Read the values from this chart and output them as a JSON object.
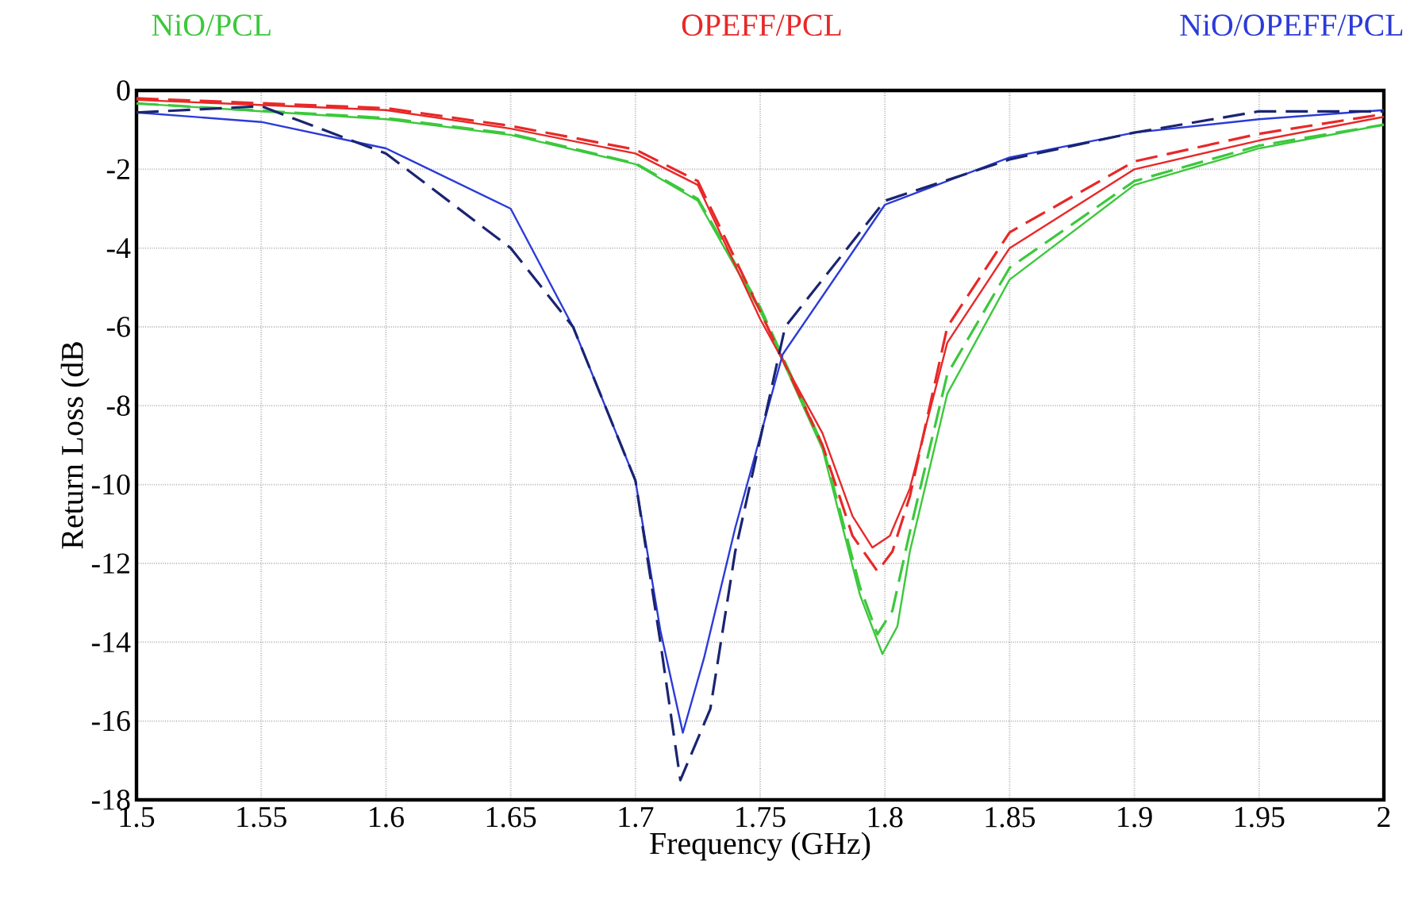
{
  "chart_data": {
    "type": "line",
    "xlabel": "Frequency (GHz)",
    "ylabel": "Return Loss (dB",
    "xlim": [
      1.5,
      2
    ],
    "ylim": [
      -18,
      0
    ],
    "xticks": [
      1.5,
      1.55,
      1.6,
      1.65,
      1.7,
      1.75,
      1.8,
      1.85,
      1.9,
      1.95,
      2
    ],
    "yticks": [
      0,
      -2,
      -4,
      -6,
      -8,
      -10,
      -12,
      -14,
      -16,
      -18
    ],
    "grid": true,
    "series": [
      {
        "name": "NiO/PCL",
        "color": "#3cc83c",
        "line_style": "solid",
        "x": [
          1.5,
          1.6,
          1.65,
          1.7,
          1.725,
          1.75,
          1.775,
          1.79,
          1.799,
          1.805,
          1.81,
          1.825,
          1.85,
          1.9,
          1.95,
          2
        ],
        "values": [
          -0.33,
          -0.73,
          -1.13,
          -1.87,
          -2.8,
          -5.6,
          -9.1,
          -12.8,
          -14.3,
          -13.6,
          -11.7,
          -7.7,
          -4.8,
          -2.4,
          -1.47,
          -0.87
        ]
      },
      {
        "color": "#3cc83c",
        "line_style": "dashed",
        "x": [
          1.5,
          1.6,
          1.65,
          1.7,
          1.725,
          1.75,
          1.775,
          1.79,
          1.797,
          1.803,
          1.81,
          1.825,
          1.85,
          1.9,
          1.95,
          2
        ],
        "values": [
          -0.33,
          -0.7,
          -1.1,
          -1.85,
          -2.75,
          -5.5,
          -9.0,
          -12.6,
          -13.8,
          -13.2,
          -11.2,
          -7.2,
          -4.5,
          -2.3,
          -1.4,
          -0.87
        ]
      },
      {
        "name": "OPEFF/PCL",
        "color": "#e82828",
        "line_style": "solid",
        "x": [
          1.5,
          1.6,
          1.65,
          1.7,
          1.725,
          1.75,
          1.775,
          1.787,
          1.795,
          1.802,
          1.81,
          1.825,
          1.85,
          1.9,
          1.95,
          2
        ],
        "values": [
          -0.24,
          -0.5,
          -0.97,
          -1.6,
          -2.4,
          -5.8,
          -8.7,
          -10.8,
          -11.6,
          -11.3,
          -10.1,
          -6.4,
          -4.0,
          -2.0,
          -1.27,
          -0.67
        ]
      },
      {
        "color": "#e82828",
        "line_style": "dashed",
        "x": [
          1.5,
          1.6,
          1.65,
          1.7,
          1.725,
          1.75,
          1.775,
          1.787,
          1.797,
          1.803,
          1.81,
          1.825,
          1.85,
          1.9,
          1.95,
          2
        ],
        "values": [
          -0.2,
          -0.45,
          -0.9,
          -1.5,
          -2.3,
          -5.6,
          -9.0,
          -11.3,
          -12.2,
          -11.7,
          -10.3,
          -6.0,
          -3.6,
          -1.8,
          -1.1,
          -0.6
        ]
      },
      {
        "name": "NiO/OPEFF/PCL",
        "color": "#2b3bd8",
        "line_style": "solid",
        "x": [
          1.5,
          1.55,
          1.6,
          1.65,
          1.675,
          1.7,
          1.71,
          1.719,
          1.7275,
          1.74,
          1.759,
          1.8,
          1.85,
          1.9,
          1.95,
          2
        ],
        "values": [
          -0.56,
          -0.8,
          -1.47,
          -3.0,
          -6.0,
          -9.9,
          -13.7,
          -16.3,
          -14.4,
          -11.1,
          -6.7,
          -2.9,
          -1.7,
          -1.07,
          -0.73,
          -0.5
        ]
      },
      {
        "color": "#1a2470",
        "line_style": "dashed",
        "x": [
          1.5,
          1.55,
          1.6,
          1.65,
          1.675,
          1.7,
          1.71,
          1.718,
          1.73,
          1.74,
          1.76,
          1.8,
          1.85,
          1.9,
          1.95,
          2
        ],
        "values": [
          -0.56,
          -0.4,
          -1.6,
          -4.0,
          -6.0,
          -9.9,
          -14.0,
          -17.5,
          -15.7,
          -11.7,
          -6.0,
          -2.8,
          -1.75,
          -1.07,
          -0.53,
          -0.53
        ]
      }
    ]
  }
}
